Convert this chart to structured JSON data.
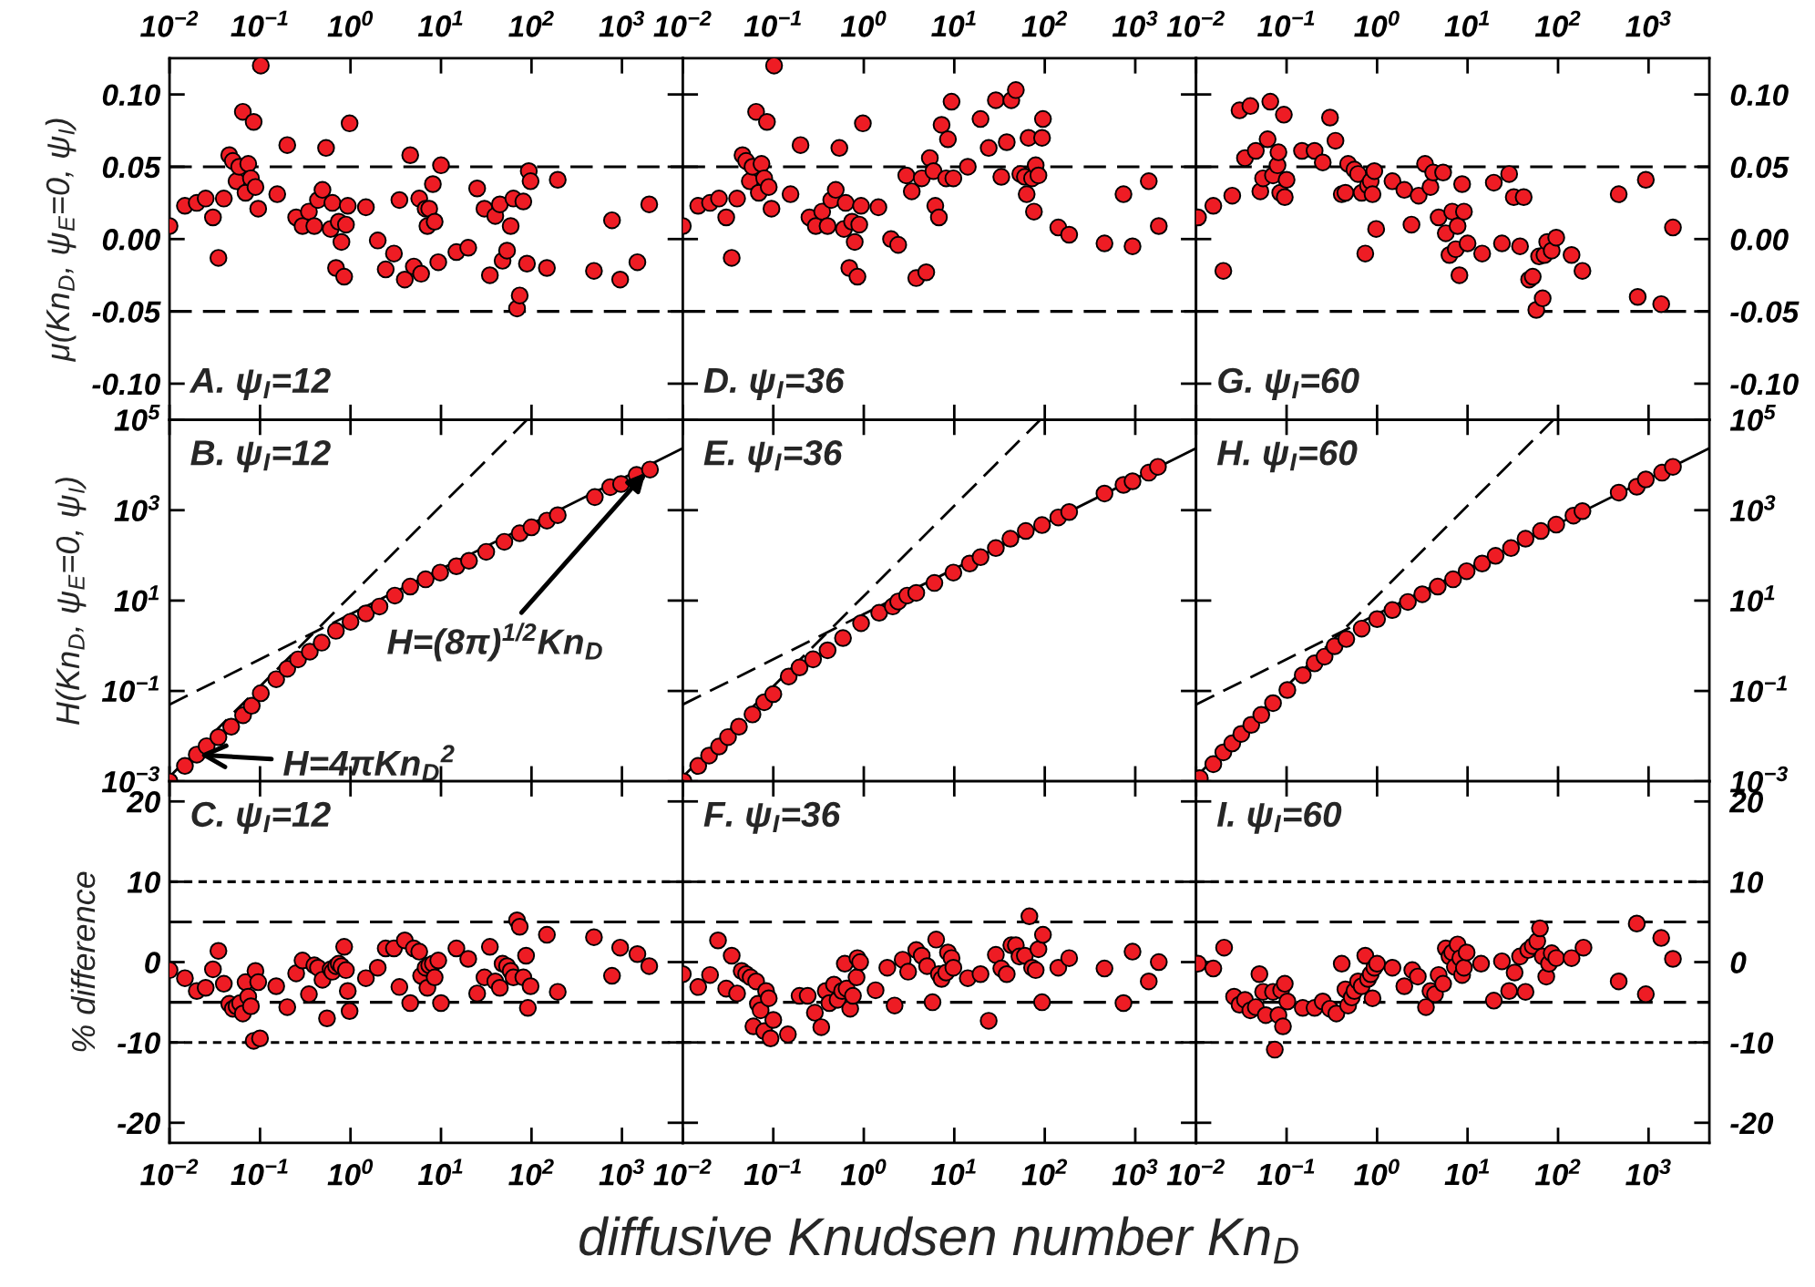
{
  "chart_data": [
    {
      "type": "scatter",
      "log": "x",
      "xlim": [
        0.01,
        4700
      ],
      "xticks": [
        {
          "value": 0.01,
          "label": "10$^{−2}$"
        },
        {
          "value": 0.1,
          "label": "10$^{−1}$"
        },
        {
          "value": 1,
          "label": "10$^{0}$"
        },
        {
          "value": 10,
          "label": "10$^{1}$"
        },
        {
          "value": 100,
          "label": "10$^{2}$"
        },
        {
          "value": 1000,
          "label": "10$^{3}$"
        }
      ],
      "ylim": [
        -0.125,
        0.125
      ],
      "yticks": [
        {
          "value": -0.1,
          "label": "-0.10"
        },
        {
          "value": -0.05,
          "label": "-0.05"
        },
        {
          "value": 0,
          "label": "0.00"
        },
        {
          "value": 0.05,
          "label": "0.05"
        },
        {
          "value": 0.1,
          "label": "0.10"
        }
      ],
      "ylabel": "μ(Kn$_{D}$, ψ$_{E}$=0, ψ$_{I}$)",
      "annotations": [
        "A. ψ$_{I}$=12"
      ],
      "ref_lines": [
        {
          "axis": "y",
          "value": 0.05,
          "color": "#000000",
          "line_style": "dashed"
        },
        {
          "axis": "y",
          "value": -0.05,
          "color": "#000000",
          "line_style": "dashed"
        }
      ],
      "series": [
        {
          "color": "#ee1c24",
          "marker": "circle",
          "x": [
            0.01,
            0.0148,
            0.02,
            0.0251,
            0.0302,
            0.0347,
            0.0398,
            0.0457,
            0.0501,
            0.055,
            0.0589,
            0.0646,
            0.0692,
            0.0741,
            0.0794,
            0.0851,
            0.0891,
            0.0955,
            0.102,
            0.155,
            0.2,
            0.251,
            0.295,
            0.347,
            0.398,
            0.437,
            0.49,
            0.537,
            0.603,
            0.631,
            0.692,
            0.741,
            0.794,
            0.851,
            0.891,
            0.933,
            0.977,
            1.48,
            2.0,
            2.45,
            3.02,
            3.47,
            3.98,
            4.57,
            5.01,
            5.75,
            6.03,
            6.76,
            7.08,
            7.41,
            8.13,
            8.51,
            9.33,
            10,
            14.8,
            20,
            25.1,
            30.2,
            34.7,
            39.8,
            44.7,
            47.9,
            53.7,
            58.9,
            63.1,
            69.2,
            74.1,
            81.3,
            89.1,
            93.3,
            97.7,
            148,
            195,
            490,
            776,
            955,
            1480,
            2000
          ],
          "values": [
            0.009,
            0.023,
            0.025,
            0.028,
            0.015,
            -0.013,
            0.028,
            0.058,
            0.054,
            0.04,
            0.05,
            0.088,
            0.032,
            0.052,
            0.042,
            0.081,
            0.036,
            0.021,
            0.12,
            0.031,
            0.065,
            0.015,
            0.009,
            0.019,
            0.009,
            0.027,
            0.034,
            0.063,
            0.007,
            0.025,
            -0.02,
            0.012,
            -0.002,
            -0.026,
            0.01,
            0.023,
            0.08,
            0.022,
            -0.001,
            -0.021,
            -0.01,
            0.027,
            -0.028,
            0.058,
            -0.019,
            0.028,
            -0.024,
            0.021,
            0.009,
            0.021,
            0.038,
            0.012,
            -0.016,
            0.051,
            -0.009,
            -0.006,
            0.035,
            0.021,
            -0.025,
            0.016,
            0.024,
            -0.015,
            -0.008,
            0.009,
            0.028,
            -0.048,
            -0.039,
            0.026,
            -0.017,
            0.047,
            0.04,
            -0.02,
            0.041,
            -0.022,
            0.013,
            -0.028,
            -0.016,
            0.024
          ]
        }
      ]
    },
    {
      "type": "scatter",
      "log": "x",
      "xlim": [
        0.01,
        4700
      ],
      "xticks": [
        {
          "value": 0.01,
          "label": "10$^{−2}$"
        },
        {
          "value": 0.1,
          "label": "10$^{−1}$"
        },
        {
          "value": 1,
          "label": "10$^{0}$"
        },
        {
          "value": 10,
          "label": "10$^{1}$"
        },
        {
          "value": 100,
          "label": "10$^{2}$"
        },
        {
          "value": 1000,
          "label": "10$^{3}$"
        }
      ],
      "ylim": [
        -0.125,
        0.125
      ],
      "yticks": [
        -0.1,
        -0.05,
        0,
        0.05,
        0.1
      ],
      "tick_labels": "x",
      "annotations": [
        "D. ψ$_{I}$=36"
      ],
      "ref_lines": [
        {
          "axis": "y",
          "value": 0.05,
          "color": "#000000",
          "line_style": "dashed"
        },
        {
          "axis": "y",
          "value": -0.05,
          "color": "#000000",
          "line_style": "dashed"
        }
      ],
      "series": [
        {
          "color": "#ee1c24",
          "marker": "circle",
          "x": [
            0.01,
            0.0148,
            0.02,
            0.0251,
            0.0302,
            0.0347,
            0.0398,
            0.0457,
            0.0501,
            0.055,
            0.0589,
            0.0646,
            0.0692,
            0.0741,
            0.0794,
            0.0851,
            0.0891,
            0.0955,
            0.102,
            0.155,
            0.2,
            0.251,
            0.295,
            0.347,
            0.398,
            0.437,
            0.49,
            0.537,
            0.603,
            0.631,
            0.692,
            0.741,
            0.794,
            0.851,
            0.891,
            0.933,
            0.977,
            1.45,
            2.0,
            2.4,
            2.95,
            3.39,
            3.8,
            4.37,
            4.9,
            5.37,
            5.89,
            6.17,
            6.76,
            7.24,
            8.13,
            8.51,
            9.33,
            9.77,
            14.1,
            19.5,
            24.0,
            28.8,
            33.1,
            38.0,
            42.7,
            47.9,
            53.7,
            60.3,
            63.1,
            66.1,
            72.4,
            75.9,
            79.4,
            85.1,
            93.3,
            95.5,
            141,
            186,
            457,
            741,
            933,
            1410,
            1820
          ],
          "values": [
            0.009,
            0.023,
            0.025,
            0.028,
            0.015,
            -0.013,
            0.028,
            0.058,
            0.054,
            0.04,
            0.05,
            0.088,
            0.032,
            0.052,
            0.042,
            0.081,
            0.036,
            0.021,
            0.12,
            0.031,
            0.065,
            0.015,
            0.009,
            0.019,
            0.009,
            0.027,
            0.034,
            0.063,
            0.007,
            0.025,
            -0.02,
            0.012,
            -0.002,
            -0.026,
            0.01,
            0.023,
            0.08,
            0.022,
            0.0,
            -0.004,
            0.044,
            0.033,
            -0.027,
            0.042,
            -0.023,
            0.056,
            0.047,
            0.023,
            0.015,
            0.079,
            0.042,
            0.069,
            0.095,
            0.042,
            0.05,
            0.083,
            0.063,
            0.096,
            0.043,
            0.067,
            0.096,
            0.103,
            0.045,
            0.043,
            0.031,
            0.07,
            0.042,
            0.019,
            0.051,
            0.044,
            0.07,
            0.083,
            0.008,
            0.003,
            -0.003,
            0.031,
            -0.005,
            0.04,
            0.009
          ]
        }
      ]
    },
    {
      "type": "scatter",
      "log": "x",
      "xlim": [
        0.01,
        4700
      ],
      "xticks": [
        {
          "value": 0.01,
          "label": "10$^{−2}$"
        },
        {
          "value": 0.1,
          "label": "10$^{−1}$"
        },
        {
          "value": 1,
          "label": "10$^{0}$"
        },
        {
          "value": 10,
          "label": "10$^{1}$"
        },
        {
          "value": 100,
          "label": "10$^{2}$"
        },
        {
          "value": 1000,
          "label": "10$^{3}$"
        }
      ],
      "ylim": [
        -0.125,
        0.125
      ],
      "yticks": [
        {
          "value": -0.1,
          "label": "-0.10"
        },
        {
          "value": -0.05,
          "label": "-0.05"
        },
        {
          "value": 0,
          "label": "0.00"
        },
        {
          "value": 0.05,
          "label": "0.05"
        },
        {
          "value": 0.1,
          "label": "0.10"
        }
      ],
      "annotations": [
        "G. ψ$_{I}$=60"
      ],
      "ref_lines": [
        {
          "axis": "y",
          "value": 0.05,
          "color": "#000000",
          "line_style": "dashed"
        },
        {
          "axis": "y",
          "value": -0.05,
          "color": "#000000",
          "line_style": "dashed"
        }
      ],
      "series": [
        {
          "color": "#ee1c24",
          "marker": "circle",
          "x": [
            0.0105,
            0.0155,
            0.02,
            0.0251,
            0.0302,
            0.0347,
            0.0398,
            0.0457,
            0.0513,
            0.055,
            0.0617,
            0.0661,
            0.0708,
            0.0794,
            0.0813,
            0.0851,
            0.0933,
            0.0955,
            0.1,
            0.148,
            0.204,
            0.251,
            0.302,
            0.347,
            0.407,
            0.447,
            0.479,
            0.562,
            0.617,
            0.676,
            0.741,
            0.794,
            0.851,
            0.891,
            0.933,
            0.977,
            1.48,
            2.0,
            2.4,
            2.88,
            3.39,
            3.89,
            4.17,
            4.79,
            5.37,
            5.75,
            6.31,
            6.76,
            7.41,
            7.76,
            8.13,
            8.71,
            9.12,
            10,
            14.5,
            19.5,
            24.0,
            28.8,
            32.4,
            38.0,
            41.7,
            47.9,
            52.5,
            57.5,
            61.7,
            67.6,
            70.8,
            75.9,
            85.1,
            95.5,
            141,
            186,
            468,
            759,
            933,
            1380,
            1860
          ],
          "values": [
            0.015,
            0.023,
            -0.022,
            0.03,
            0.089,
            0.056,
            0.092,
            0.061,
            0.033,
            0.042,
            0.069,
            0.095,
            0.044,
            0.051,
            0.06,
            0.032,
            0.086,
            0.029,
            0.041,
            0.061,
            0.061,
            0.053,
            0.084,
            0.068,
            0.031,
            0.032,
            0.052,
            0.048,
            0.045,
            0.032,
            -0.01,
            0.037,
            0.04,
            0.031,
            0.047,
            0.007,
            0.04,
            0.034,
            0.01,
            0.03,
            0.052,
            0.036,
            0.046,
            0.015,
            0.046,
            0.004,
            -0.011,
            0.019,
            -0.007,
            0.009,
            -0.025,
            0.038,
            0.019,
            -0.003,
            -0.01,
            0.039,
            -0.003,
            0.045,
            0.029,
            -0.005,
            0.029,
            -0.028,
            -0.026,
            -0.049,
            -0.012,
            -0.041,
            -0.011,
            -0.002,
            -0.008,
            0.001,
            -0.011,
            -0.022,
            0.031,
            -0.04,
            0.041,
            -0.045,
            0.008
          ]
        }
      ]
    },
    {
      "type": "scatter",
      "log": "xy",
      "xlim": [
        0.01,
        4700
      ],
      "xticks": [
        0.01,
        0.1,
        1,
        10,
        100,
        1000
      ],
      "ylim": [
        0.001,
        100000
      ],
      "yticks": [
        {
          "value": 0.001,
          "label": "10$^{−3}$"
        },
        {
          "value": 0.1,
          "label": "10$^{−1}$"
        },
        {
          "value": 10,
          "label": "10$^{1}$"
        },
        {
          "value": 1000,
          "label": "10$^{3}$"
        },
        {
          "value": 100000,
          "label": "10$^{5}$"
        }
      ],
      "tick_labels": "y",
      "ylabel": "H(Kn$_{D}$, ψ$_{E}$=0, ψ$_{I}$)",
      "annotations": [
        "B. ψ$_{I}$=12",
        {
          "text": "H=4πKn$_{D}$$^{2}$",
          "x": 0.02,
          "y": 0.0039
        },
        {
          "text": "H=(8π)$^{1/2}$Kn$_{D}$",
          "x": 1900,
          "y": 7400
        }
      ],
      "series": [
        {
          "type": "line",
          "color": "#000000",
          "line_style": "dashed",
          "marker": "none",
          "x": [
            0.01,
            89.2
          ],
          "values": [
            0.00126,
            100000
          ]
        },
        {
          "type": "line",
          "color": "#000000",
          "line_style": "dashed",
          "marker": "none",
          "x": [
            0.01,
            1
          ],
          "values": [
            0.0501,
            5.01
          ]
        },
        {
          "type": "line",
          "color": "#000000",
          "line_style": "solid",
          "marker": "none",
          "x": [
            1,
            4700
          ],
          "values": [
            5.01,
            23500
          ]
        },
        {
          "color": "#ee1c24",
          "marker": "circle",
          "x": [
            0.01,
            0.0148,
            0.02,
            0.0257,
            0.0347,
            0.048,
            0.065,
            0.081,
            0.102,
            0.151,
            0.2,
            0.263,
            0.355,
            0.48,
            0.69,
            1.0,
            1.48,
            2.09,
            3.09,
            4.57,
            6.76,
            9.8,
            14.8,
            20.4,
            31.6,
            50.1,
            74.1,
            100,
            148,
            195,
            501,
            741,
            977,
            1450,
            2040
          ],
          "values": [
            0.001,
            0.00219,
            0.0039,
            0.006,
            0.0095,
            0.0162,
            0.029,
            0.047,
            0.089,
            0.182,
            0.31,
            0.5,
            0.74,
            1.17,
            2.14,
            3.4,
            5.2,
            7.4,
            12.9,
            20.4,
            29.5,
            41.7,
            57.5,
            75.9,
            120,
            200,
            309,
            417,
            589,
            776,
            1950,
            3240,
            3800,
            6030,
            7940
          ]
        }
      ]
    },
    {
      "type": "scatter",
      "log": "xy",
      "xlim": [
        0.01,
        4700
      ],
      "xticks": [
        0.01,
        0.1,
        1,
        10,
        100,
        1000
      ],
      "ylim": [
        0.001,
        100000
      ],
      "yticks": [
        0.001,
        0.1,
        10,
        1000,
        100000
      ],
      "tick_labels": false,
      "annotations": [
        "E. ψ$_{I}$=36"
      ],
      "series": [
        {
          "type": "line",
          "color": "#000000",
          "line_style": "dashed",
          "marker": "none",
          "x": [
            0.01,
            89.2
          ],
          "values": [
            0.00126,
            100000
          ]
        },
        {
          "type": "line",
          "color": "#000000",
          "line_style": "dashed",
          "marker": "none",
          "x": [
            0.01,
            1
          ],
          "values": [
            0.0501,
            5.01
          ]
        },
        {
          "type": "line",
          "color": "#000000",
          "line_style": "solid",
          "marker": "none",
          "x": [
            1,
            4700
          ],
          "values": [
            5.01,
            23500
          ]
        },
        {
          "color": "#ee1c24",
          "marker": "circle",
          "x": [
            0.0102,
            0.0148,
            0.0195,
            0.0251,
            0.0316,
            0.0417,
            0.0589,
            0.0794,
            0.1,
            0.148,
            0.195,
            0.275,
            0.398,
            0.589,
            0.933,
            1.48,
            2.09,
            2.4,
            3.02,
            3.8,
            6.03,
            9.77,
            14.8,
            19.5,
            28.8,
            41.7,
            61.7,
            93.3,
            141,
            186,
            457,
            741,
            933,
            1410,
            1780
          ],
          "values": [
            0.001,
            0.00219,
            0.00372,
            0.00589,
            0.00955,
            0.0162,
            0.0302,
            0.0562,
            0.0851,
            0.209,
            0.331,
            0.501,
            0.794,
            1.48,
            3.16,
            5.37,
            7.41,
            9.55,
            12.9,
            14.8,
            24.5,
            41.7,
            66.1,
            91.2,
            145,
            234,
            347,
            468,
            692,
            912,
            2340,
            3630,
            4370,
            6760,
            9120
          ]
        }
      ]
    },
    {
      "type": "scatter",
      "log": "xy",
      "xlim": [
        0.01,
        4700
      ],
      "xticks": [
        0.01,
        0.1,
        1,
        10,
        100,
        1000
      ],
      "ylim": [
        0.001,
        100000
      ],
      "yticks": [
        {
          "value": 0.001,
          "label": "10$^{−3}$"
        },
        {
          "value": 0.1,
          "label": "10$^{−1}$"
        },
        {
          "value": 10,
          "label": "10$^{1}$"
        },
        {
          "value": 1000,
          "label": "10$^{3}$"
        },
        {
          "value": 100000,
          "label": "10$^{5}$"
        }
      ],
      "tick_labels": "y",
      "annotations": [
        "H. ψ$_{I}$=60"
      ],
      "series": [
        {
          "type": "line",
          "color": "#000000",
          "line_style": "dashed",
          "marker": "none",
          "x": [
            0.01,
            89.2
          ],
          "values": [
            0.00126,
            100000
          ]
        },
        {
          "type": "line",
          "color": "#000000",
          "line_style": "dashed",
          "marker": "none",
          "x": [
            0.01,
            1
          ],
          "values": [
            0.0501,
            5.01
          ]
        },
        {
          "type": "line",
          "color": "#000000",
          "line_style": "solid",
          "marker": "none",
          "x": [
            1,
            4700
          ],
          "values": [
            5.01,
            23500
          ]
        },
        {
          "color": "#ee1c24",
          "marker": "circle",
          "x": [
            0.011,
            0.0155,
            0.02,
            0.0251,
            0.0316,
            0.0407,
            0.0525,
            0.0708,
            0.102,
            0.151,
            0.204,
            0.263,
            0.339,
            0.457,
            0.676,
            1.0,
            1.48,
            2.19,
            3.16,
            4.68,
            6.92,
            9.77,
            14.5,
            20.4,
            30.2,
            43.7,
            64.6,
            95.5,
            148,
            186,
            468,
            741,
            933,
            1410,
            1860
          ],
          "values": [
            0.00117,
            0.0024,
            0.00437,
            0.00692,
            0.0112,
            0.0178,
            0.0295,
            0.0537,
            0.105,
            0.224,
            0.407,
            0.575,
            0.977,
            1.41,
            2.4,
            3.89,
            6.17,
            9.33,
            13.8,
            20.4,
            29.5,
            44.7,
            66.1,
            97.7,
            145,
            234,
            347,
            479,
            759,
            955,
            2450,
            3310,
            4790,
            6760,
            9120
          ]
        }
      ]
    },
    {
      "type": "scatter",
      "log": "x",
      "xlim": [
        0.01,
        4700
      ],
      "xticks": [
        {
          "value": 0.01,
          "label": "10$^{−2}$"
        },
        {
          "value": 0.1,
          "label": "10$^{−1}$"
        },
        {
          "value": 1,
          "label": "10$^{0}$"
        },
        {
          "value": 10,
          "label": "10$^{1}$"
        },
        {
          "value": 100,
          "label": "10$^{2}$"
        },
        {
          "value": 1000,
          "label": "10$^{3}$"
        }
      ],
      "ylim": [
        -22.5,
        22.5
      ],
      "yticks": [
        -20,
        -10,
        0,
        10,
        20
      ],
      "ylabel": "% difference",
      "annotations": [
        "C. ψ$_{I}$=12"
      ],
      "ref_lines": [
        {
          "axis": "y",
          "value": 10,
          "color": "#000000",
          "line_style": "dotted"
        },
        {
          "axis": "y",
          "value": 5,
          "color": "#000000",
          "line_style": "dashed"
        },
        {
          "axis": "y",
          "value": -5,
          "color": "#000000",
          "line_style": "dashed"
        },
        {
          "axis": "y",
          "value": -10,
          "color": "#000000",
          "line_style": "dotted"
        }
      ],
      "series": [
        {
          "color": "#ee1c24",
          "marker": "circle",
          "x": [
            0.01,
            0.0148,
            0.02,
            0.0251,
            0.0302,
            0.0347,
            0.0398,
            0.0457,
            0.0501,
            0.055,
            0.0603,
            0.0646,
            0.0692,
            0.0741,
            0.0794,
            0.0851,
            0.0891,
            0.0955,
            0.1,
            0.151,
            0.2,
            0.251,
            0.295,
            0.347,
            0.398,
            0.437,
            0.49,
            0.55,
            0.603,
            0.631,
            0.692,
            0.741,
            0.794,
            0.851,
            0.891,
            0.933,
            0.977,
            1.48,
            2.0,
            2.45,
            3.02,
            3.47,
            3.98,
            4.57,
            5.01,
            5.75,
            6.03,
            6.76,
            7.08,
            7.41,
            8.13,
            8.51,
            9.33,
            10,
            14.8,
            20,
            25.1,
            30.2,
            34.7,
            39.8,
            44.7,
            47.9,
            53.7,
            58.9,
            63.1,
            69.2,
            74.1,
            81.3,
            87.1,
            91.2,
            97.7,
            148,
            195,
            490,
            776,
            955,
            1480,
            2000
          ],
          "values": [
            -1.0,
            -2.0,
            -3.6,
            -3.2,
            -0.9,
            1.4,
            -2.7,
            -5.2,
            -5.8,
            -5.5,
            -5.1,
            -6.4,
            -2.5,
            -4.3,
            -5.5,
            -9.8,
            -1.1,
            -2.5,
            -9.5,
            -3.0,
            -5.6,
            -1.4,
            0.2,
            -4.0,
            -0.4,
            -0.7,
            -2.2,
            -7.0,
            -0.9,
            -1.2,
            -0.5,
            -0.2,
            -0.5,
            1.9,
            -1.0,
            -3.6,
            -6.1,
            -2.0,
            -0.7,
            1.7,
            1.7,
            -3.1,
            2.7,
            -5.1,
            1.7,
            1.3,
            -1.7,
            -0.7,
            -3.2,
            -0.4,
            -0.2,
            -1.9,
            0.2,
            -5.1,
            1.7,
            0.4,
            -3.9,
            -1.9,
            1.9,
            -2.4,
            -3.2,
            -0.2,
            -0.5,
            -1.1,
            -1.9,
            5.2,
            4.4,
            -1.9,
            0.8,
            -5.7,
            -3.0,
            3.4,
            -3.7,
            3.1,
            -1.7,
            1.8,
            1.0,
            -0.5
          ]
        }
      ]
    },
    {
      "type": "scatter",
      "log": "x",
      "xlim": [
        0.01,
        4700
      ],
      "xticks": [
        {
          "value": 0.01,
          "label": "10$^{−2}$"
        },
        {
          "value": 0.1,
          "label": "10$^{−1}$"
        },
        {
          "value": 1,
          "label": "10$^{0}$"
        },
        {
          "value": 10,
          "label": "10$^{1}$"
        },
        {
          "value": 100,
          "label": "10$^{2}$"
        },
        {
          "value": 1000,
          "label": "10$^{3}$"
        }
      ],
      "ylim": [
        -22.5,
        22.5
      ],
      "yticks": [
        -20,
        -10,
        0,
        10,
        20
      ],
      "tick_labels": "x",
      "xlabel": "diffusive Knudsen number Kn$_{D}$",
      "annotations": [
        "F. ψ$_{I}$=36"
      ],
      "ref_lines": [
        {
          "axis": "y",
          "value": 10,
          "color": "#000000",
          "line_style": "dotted"
        },
        {
          "axis": "y",
          "value": 5,
          "color": "#000000",
          "line_style": "dashed"
        },
        {
          "axis": "y",
          "value": -5,
          "color": "#000000",
          "line_style": "dashed"
        },
        {
          "axis": "y",
          "value": -10,
          "color": "#000000",
          "line_style": "dotted"
        }
      ],
      "series": [
        {
          "color": "#ee1c24",
          "marker": "circle",
          "x": [
            0.01,
            0.0148,
            0.02,
            0.0245,
            0.0302,
            0.0347,
            0.0398,
            0.0447,
            0.0501,
            0.0562,
            0.0603,
            0.0646,
            0.0676,
            0.0724,
            0.0794,
            0.0832,
            0.0891,
            0.0933,
            0.1,
            0.145,
            0.195,
            0.24,
            0.288,
            0.339,
            0.38,
            0.417,
            0.468,
            0.513,
            0.575,
            0.617,
            0.646,
            0.708,
            0.759,
            0.832,
            0.851,
            0.912,
            1.35,
            1.82,
            2.19,
            2.69,
            3.09,
            3.8,
            4.37,
            5.01,
            5.75,
            6.31,
            6.76,
            7.24,
            8.13,
            8.51,
            9.33,
            9.77,
            14.1,
            19.5,
            24.0,
            28.8,
            33.1,
            38.0,
            42.7,
            47.9,
            52.5,
            60.3,
            67.6,
            72.4,
            79.4,
            85.1,
            93.3,
            95.5,
            141,
            186,
            457,
            741,
            933,
            1410,
            1820
          ],
          "values": [
            -1.5,
            -3.1,
            -1.6,
            2.7,
            -3.3,
            0.8,
            -3.9,
            -1.1,
            -1.5,
            -1.9,
            -8.0,
            -2.4,
            -5.2,
            -6.0,
            -8.6,
            -3.6,
            -4.5,
            -9.5,
            -7.2,
            -9.0,
            -4.2,
            -4.2,
            -6.3,
            -8.1,
            -3.6,
            -5.1,
            -2.8,
            -4.7,
            -3.6,
            -0.2,
            -3.3,
            -5.8,
            -4.2,
            -1.9,
            0.5,
            0.0,
            -3.5,
            -0.7,
            -5.4,
            0.3,
            -1.2,
            1.5,
            0.8,
            -0.5,
            -5.0,
            2.8,
            -1.5,
            -2.1,
            -1.3,
            1.2,
            0.5,
            -0.7,
            -2.0,
            -1.5,
            -7.3,
            0.9,
            -0.8,
            -1.5,
            2.1,
            2.1,
            0.7,
            0.8,
            5.7,
            -0.7,
            -1.0,
            1.6,
            -5.0,
            3.4,
            -0.7,
            0.5,
            -0.8,
            -5.1,
            1.3,
            -2.4,
            0.0
          ]
        }
      ]
    },
    {
      "type": "scatter",
      "log": "x",
      "xlim": [
        0.01,
        4700
      ],
      "xticks": [
        {
          "value": 0.01,
          "label": "10$^{−2}$"
        },
        {
          "value": 0.1,
          "label": "10$^{−1}$"
        },
        {
          "value": 1,
          "label": "10$^{0}$"
        },
        {
          "value": 10,
          "label": "10$^{1}$"
        },
        {
          "value": 100,
          "label": "10$^{2}$"
        },
        {
          "value": 1000,
          "label": "10$^{3}$"
        }
      ],
      "ylim": [
        -22.5,
        22.5
      ],
      "yticks": [
        -20,
        -10,
        0,
        10,
        20
      ],
      "annotations": [
        "I. ψ$_{I}$=60"
      ],
      "ref_lines": [
        {
          "axis": "y",
          "value": 10,
          "color": "#000000",
          "line_style": "dotted"
        },
        {
          "axis": "y",
          "value": 5,
          "color": "#000000",
          "line_style": "dashed"
        },
        {
          "axis": "y",
          "value": -5,
          "color": "#000000",
          "line_style": "dashed"
        },
        {
          "axis": "y",
          "value": -10,
          "color": "#000000",
          "line_style": "dotted"
        }
      ],
      "series": [
        {
          "color": "#ee1c24",
          "marker": "circle",
          "x": [
            0.0105,
            0.0155,
            0.0204,
            0.0263,
            0.0302,
            0.0347,
            0.0398,
            0.0457,
            0.0501,
            0.055,
            0.0589,
            0.0708,
            0.0741,
            0.0813,
            0.0871,
            0.0912,
            0.0955,
            0.102,
            0.151,
            0.204,
            0.251,
            0.302,
            0.355,
            0.407,
            0.447,
            0.479,
            0.525,
            0.562,
            0.617,
            0.676,
            0.741,
            0.794,
            0.851,
            0.891,
            0.933,
            1.0,
            1.48,
            2.0,
            2.45,
            2.82,
            3.47,
            3.89,
            4.37,
            4.79,
            5.37,
            5.75,
            6.31,
            6.76,
            7.24,
            7.76,
            8.32,
            8.71,
            9.12,
            9.77,
            14.1,
            19.5,
            24.0,
            28.8,
            33.1,
            38.0,
            43.7,
            46.8,
            52.5,
            58.9,
            63.1,
            67.6,
            74.1,
            79.4,
            85.1,
            95.5,
            141,
            191,
            468,
            741,
            933,
            1380,
            1860
          ],
          "values": [
            -0.2,
            -0.8,
            1.8,
            -4.3,
            -5.3,
            -4.7,
            -6.0,
            -5.6,
            -1.5,
            -3.7,
            -6.6,
            -3.7,
            -10.9,
            -6.6,
            -3.5,
            -8.0,
            -2.7,
            -4.9,
            -5.7,
            -5.7,
            -4.9,
            -5.8,
            -6.4,
            -0.2,
            -3.4,
            -5.4,
            -4.4,
            -3.6,
            -2.4,
            -3.0,
            0.8,
            -2.1,
            -1.5,
            -4.5,
            -0.7,
            -0.2,
            -0.7,
            -3.0,
            -1.0,
            -1.8,
            -5.6,
            -3.6,
            -4.0,
            -1.6,
            -2.7,
            1.7,
            0.7,
            1.2,
            -0.6,
            2.2,
            0.5,
            -1.6,
            -0.7,
            1.2,
            -0.2,
            -4.8,
            0.1,
            -3.6,
            -1.3,
            0.7,
            -3.7,
            1.5,
            2.0,
            2.6,
            4.2,
            0.7,
            -1.8,
            -0.2,
            1.1,
            0.5,
            0.5,
            1.8,
            -2.4,
            4.8,
            -4.0,
            3.0,
            0.4
          ]
        }
      ]
    }
  ]
}
